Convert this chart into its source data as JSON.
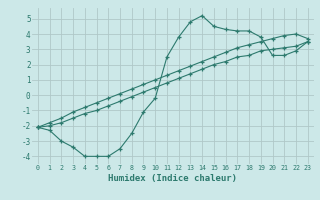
{
  "background_color": "#cce8e8",
  "grid_color": "#b0c8c8",
  "line_color": "#2d7a6e",
  "x_label": "Humidex (Indice chaleur)",
  "ylim": [
    -4.5,
    5.7
  ],
  "xlim": [
    -0.5,
    23.5
  ],
  "yticks": [
    -4,
    -3,
    -2,
    -1,
    0,
    1,
    2,
    3,
    4,
    5
  ],
  "xticks": [
    0,
    1,
    2,
    3,
    4,
    5,
    6,
    7,
    8,
    9,
    10,
    11,
    12,
    13,
    14,
    15,
    16,
    17,
    18,
    19,
    20,
    21,
    22,
    23
  ],
  "line1_x": [
    0,
    1,
    2,
    3,
    4,
    5,
    6,
    7,
    8,
    9,
    10,
    11,
    12,
    13,
    14,
    15,
    16,
    17,
    18,
    19,
    20,
    21,
    22,
    23
  ],
  "line1_y": [
    -2.1,
    -2.3,
    -3.0,
    -3.4,
    -4.0,
    -4.0,
    -4.0,
    -3.5,
    -2.5,
    -1.1,
    -0.2,
    2.5,
    3.8,
    4.8,
    5.2,
    4.5,
    4.3,
    4.2,
    4.2,
    3.8,
    2.6,
    2.6,
    2.9,
    3.5
  ],
  "line2_x": [
    0,
    1,
    2,
    3,
    4,
    5,
    6,
    7,
    8,
    9,
    10,
    11,
    12,
    13,
    14,
    15,
    16,
    17,
    18,
    19,
    20,
    21,
    22,
    23
  ],
  "line2_y": [
    -2.1,
    -2.0,
    -1.8,
    -1.5,
    -1.2,
    -1.0,
    -0.7,
    -0.4,
    -0.1,
    0.2,
    0.5,
    0.8,
    1.1,
    1.4,
    1.7,
    2.0,
    2.2,
    2.5,
    2.6,
    2.9,
    3.0,
    3.1,
    3.2,
    3.5
  ],
  "line3_x": [
    0,
    1,
    2,
    3,
    4,
    5,
    6,
    7,
    8,
    9,
    10,
    11,
    12,
    13,
    14,
    15,
    16,
    17,
    18,
    19,
    20,
    21,
    22,
    23
  ],
  "line3_y": [
    -2.1,
    -1.8,
    -1.5,
    -1.1,
    -0.8,
    -0.5,
    -0.2,
    0.1,
    0.4,
    0.7,
    1.0,
    1.3,
    1.6,
    1.9,
    2.2,
    2.5,
    2.8,
    3.1,
    3.3,
    3.5,
    3.7,
    3.9,
    4.0,
    3.7
  ]
}
